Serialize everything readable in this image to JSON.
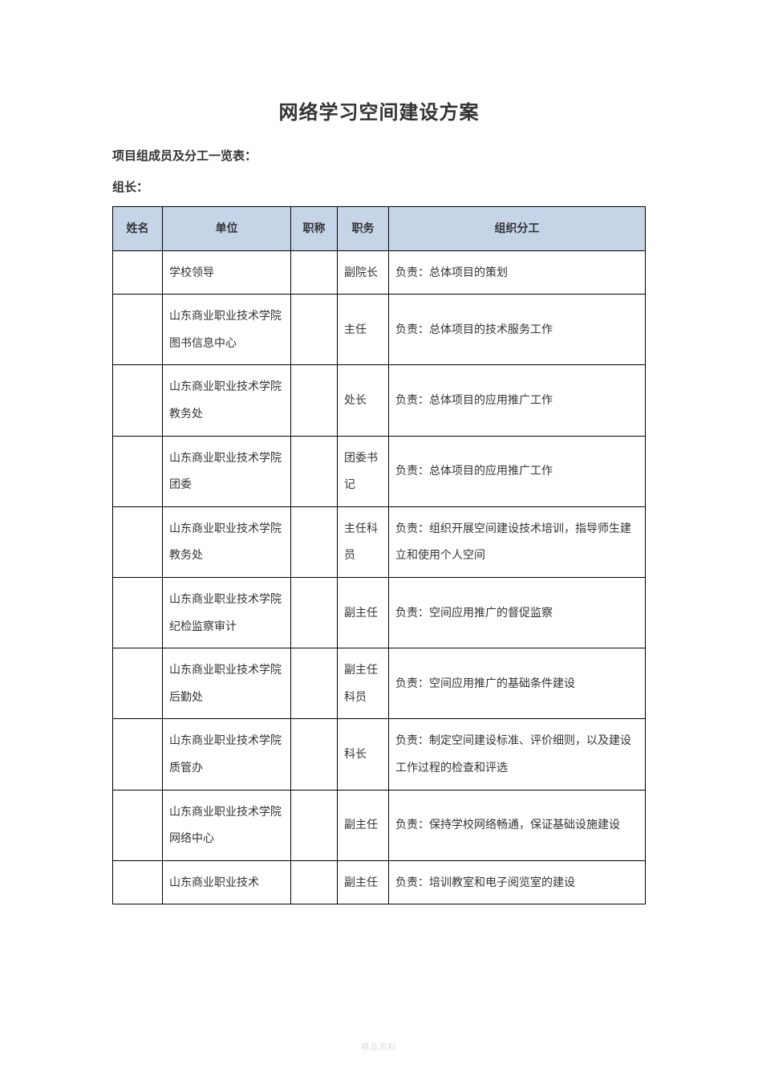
{
  "document": {
    "title": "网络学习空间建设方案",
    "subheading": "项目组成员及分工一览表：",
    "leader_label": "组长：",
    "footer": "精品资料",
    "table": {
      "header_bg": "#c6d4e8",
      "border_color": "#000000",
      "columns": [
        "姓名",
        "单位",
        "职称",
        "职务",
        "组织分工"
      ],
      "rows": [
        {
          "name": "",
          "unit": "学校领导",
          "title": "",
          "duty": "副院长",
          "resp": "负责：总体项目的策划"
        },
        {
          "name": "",
          "unit": "山东商业职业技术学院图书信息中心",
          "title": "",
          "duty": "主任",
          "resp": "负责：总体项目的技术服务工作"
        },
        {
          "name": "",
          "unit": "山东商业职业技术学院教务处",
          "title": "",
          "duty": "处长",
          "resp": "负责：总体项目的应用推广工作"
        },
        {
          "name": "",
          "unit": "山东商业职业技术学院团委",
          "title": "",
          "duty": "团委书记",
          "resp": "负责：总体项目的应用推广工作"
        },
        {
          "name": "",
          "unit": "山东商业职业技术学院教务处",
          "title": "",
          "duty": "主任科员",
          "resp": "负责：组织开展空间建设技术培训，指导师生建立和使用个人空间"
        },
        {
          "name": "",
          "unit": "山东商业职业技术学院纪检监察审计",
          "title": "",
          "duty": "副主任",
          "resp": "负责：空间应用推广的督促监察"
        },
        {
          "name": "",
          "unit": "山东商业职业技术学院后勤处",
          "title": "",
          "duty": "副主任科员",
          "resp": "负责：空间应用推广的基础条件建设"
        },
        {
          "name": "",
          "unit": "山东商业职业技术学院质管办",
          "title": "",
          "duty": "科长",
          "resp": "负责：制定空间建设标准、评价细则，以及建设工作过程的检查和评选"
        },
        {
          "name": "",
          "unit": "山东商业职业技术学院网络中心",
          "title": "",
          "duty": "副主任",
          "resp": "负责：保持学校网络畅通，保证基础设施建设"
        },
        {
          "name": "",
          "unit": "山东商业职业技术",
          "title": "",
          "duty": "副主任",
          "resp": "负责：培训教室和电子阅览室的建设"
        }
      ]
    }
  }
}
